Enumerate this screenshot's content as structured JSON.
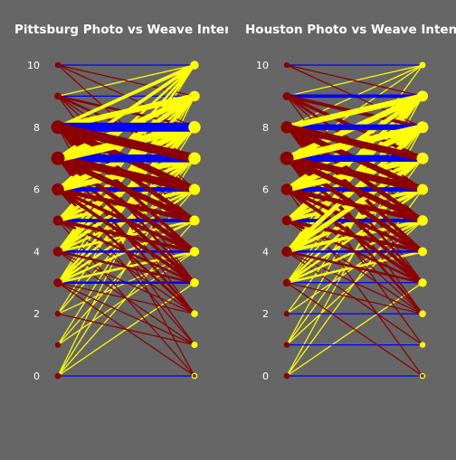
{
  "colors": {
    "background": "#666666",
    "equal": "#0000ff",
    "photo_higher": "#8b0000",
    "weave_higher": "#ffff00",
    "text": "#ffffff"
  },
  "chart_data": [
    {
      "type": "bump",
      "title": "Pittsburg Photo vs Weave Intensity",
      "ylim": [
        0,
        10
      ],
      "yticks": [
        0,
        2,
        4,
        6,
        8,
        10
      ],
      "links": [
        {
          "from": 0,
          "to": 0,
          "w": 1
        },
        {
          "from": 0,
          "to": 3,
          "w": 1
        },
        {
          "from": 0,
          "to": 5,
          "w": 1
        },
        {
          "from": 0,
          "to": 7,
          "w": 1
        },
        {
          "from": 0,
          "to": 9,
          "w": 1
        },
        {
          "from": 1,
          "to": 4,
          "w": 1
        },
        {
          "from": 1,
          "to": 6,
          "w": 1
        },
        {
          "from": 1,
          "to": 8,
          "w": 1
        },
        {
          "from": 2,
          "to": 1,
          "w": 1
        },
        {
          "from": 2,
          "to": 4,
          "w": 1
        },
        {
          "from": 2,
          "to": 7,
          "w": 1
        },
        {
          "from": 2,
          "to": 9,
          "w": 1
        },
        {
          "from": 3,
          "to": 3,
          "w": 2
        },
        {
          "from": 3,
          "to": 0,
          "w": 1
        },
        {
          "from": 3,
          "to": 1,
          "w": 1
        },
        {
          "from": 3,
          "to": 2,
          "w": 1
        },
        {
          "from": 3,
          "to": 4,
          "w": 2
        },
        {
          "from": 3,
          "to": 5,
          "w": 2
        },
        {
          "from": 3,
          "to": 6,
          "w": 2
        },
        {
          "from": 3,
          "to": 7,
          "w": 2
        },
        {
          "from": 3,
          "to": 8,
          "w": 2
        },
        {
          "from": 3,
          "to": 9,
          "w": 1
        },
        {
          "from": 3,
          "to": 10,
          "w": 1
        },
        {
          "from": 4,
          "to": 4,
          "w": 2
        },
        {
          "from": 4,
          "to": 1,
          "w": 1
        },
        {
          "from": 4,
          "to": 2,
          "w": 1
        },
        {
          "from": 4,
          "to": 3,
          "w": 2
        },
        {
          "from": 4,
          "to": 5,
          "w": 2
        },
        {
          "from": 4,
          "to": 6,
          "w": 2
        },
        {
          "from": 4,
          "to": 7,
          "w": 3
        },
        {
          "from": 4,
          "to": 8,
          "w": 3
        },
        {
          "from": 4,
          "to": 9,
          "w": 3
        },
        {
          "from": 4,
          "to": 10,
          "w": 2
        },
        {
          "from": 5,
          "to": 5,
          "w": 3
        },
        {
          "from": 5,
          "to": 0,
          "w": 1
        },
        {
          "from": 5,
          "to": 2,
          "w": 1
        },
        {
          "from": 5,
          "to": 3,
          "w": 2
        },
        {
          "from": 5,
          "to": 4,
          "w": 3
        },
        {
          "from": 5,
          "to": 6,
          "w": 3
        },
        {
          "from": 5,
          "to": 7,
          "w": 3
        },
        {
          "from": 5,
          "to": 8,
          "w": 3
        },
        {
          "from": 5,
          "to": 9,
          "w": 2
        },
        {
          "from": 5,
          "to": 10,
          "w": 2
        },
        {
          "from": 6,
          "to": 6,
          "w": 4
        },
        {
          "from": 6,
          "to": 1,
          "w": 1
        },
        {
          "from": 6,
          "to": 2,
          "w": 2
        },
        {
          "from": 6,
          "to": 3,
          "w": 3
        },
        {
          "from": 6,
          "to": 4,
          "w": 3
        },
        {
          "from": 6,
          "to": 5,
          "w": 4
        },
        {
          "from": 6,
          "to": 7,
          "w": 5
        },
        {
          "from": 6,
          "to": 8,
          "w": 5
        },
        {
          "from": 6,
          "to": 9,
          "w": 4
        },
        {
          "from": 6,
          "to": 10,
          "w": 2
        },
        {
          "from": 7,
          "to": 7,
          "w": 7
        },
        {
          "from": 7,
          "to": 1,
          "w": 1
        },
        {
          "from": 7,
          "to": 2,
          "w": 2
        },
        {
          "from": 7,
          "to": 3,
          "w": 3
        },
        {
          "from": 7,
          "to": 4,
          "w": 4
        },
        {
          "from": 7,
          "to": 5,
          "w": 5
        },
        {
          "from": 7,
          "to": 6,
          "w": 7
        },
        {
          "from": 7,
          "to": 8,
          "w": 7
        },
        {
          "from": 7,
          "to": 9,
          "w": 5
        },
        {
          "from": 7,
          "to": 10,
          "w": 3
        },
        {
          "from": 8,
          "to": 8,
          "w": 8
        },
        {
          "from": 8,
          "to": 0,
          "w": 1
        },
        {
          "from": 8,
          "to": 2,
          "w": 1
        },
        {
          "from": 8,
          "to": 3,
          "w": 2
        },
        {
          "from": 8,
          "to": 4,
          "w": 3
        },
        {
          "from": 8,
          "to": 5,
          "w": 4
        },
        {
          "from": 8,
          "to": 6,
          "w": 6
        },
        {
          "from": 8,
          "to": 7,
          "w": 8
        },
        {
          "from": 8,
          "to": 9,
          "w": 5
        },
        {
          "from": 8,
          "to": 10,
          "w": 3
        },
        {
          "from": 9,
          "to": 9,
          "w": 1
        },
        {
          "from": 9,
          "to": 3,
          "w": 1
        },
        {
          "from": 9,
          "to": 5,
          "w": 1
        },
        {
          "from": 9,
          "to": 6,
          "w": 1
        },
        {
          "from": 9,
          "to": 7,
          "w": 2
        },
        {
          "from": 9,
          "to": 8,
          "w": 2
        },
        {
          "from": 9,
          "to": 10,
          "w": 1
        },
        {
          "from": 10,
          "to": 10,
          "w": 1
        },
        {
          "from": 10,
          "to": 6,
          "w": 1
        },
        {
          "from": 10,
          "to": 8,
          "w": 1
        },
        {
          "from": 10,
          "to": 9,
          "w": 1
        }
      ]
    },
    {
      "type": "bump",
      "title": "Houston Photo vs Weave Intensity",
      "ylim": [
        0,
        10
      ],
      "yticks": [
        0,
        2,
        4,
        6,
        8,
        10
      ],
      "links": [
        {
          "from": 0,
          "to": 0,
          "w": 1
        },
        {
          "from": 0,
          "to": 3,
          "w": 1
        },
        {
          "from": 0,
          "to": 6,
          "w": 1
        },
        {
          "from": 0,
          "to": 8,
          "w": 1
        },
        {
          "from": 1,
          "to": 1,
          "w": 1
        },
        {
          "from": 1,
          "to": 5,
          "w": 1
        },
        {
          "from": 1,
          "to": 7,
          "w": 1
        },
        {
          "from": 1,
          "to": 9,
          "w": 1
        },
        {
          "from": 2,
          "to": 2,
          "w": 1
        },
        {
          "from": 2,
          "to": 5,
          "w": 1
        },
        {
          "from": 2,
          "to": 8,
          "w": 1
        },
        {
          "from": 3,
          "to": 3,
          "w": 1
        },
        {
          "from": 3,
          "to": 0,
          "w": 1
        },
        {
          "from": 3,
          "to": 2,
          "w": 1
        },
        {
          "from": 3,
          "to": 4,
          "w": 2
        },
        {
          "from": 3,
          "to": 5,
          "w": 2
        },
        {
          "from": 3,
          "to": 6,
          "w": 2
        },
        {
          "from": 3,
          "to": 7,
          "w": 2
        },
        {
          "from": 3,
          "to": 8,
          "w": 1
        },
        {
          "from": 3,
          "to": 9,
          "w": 1
        },
        {
          "from": 4,
          "to": 4,
          "w": 2
        },
        {
          "from": 4,
          "to": 1,
          "w": 1
        },
        {
          "from": 4,
          "to": 2,
          "w": 1
        },
        {
          "from": 4,
          "to": 3,
          "w": 2
        },
        {
          "from": 4,
          "to": 5,
          "w": 3
        },
        {
          "from": 4,
          "to": 6,
          "w": 3
        },
        {
          "from": 4,
          "to": 7,
          "w": 4
        },
        {
          "from": 4,
          "to": 8,
          "w": 4
        },
        {
          "from": 4,
          "to": 9,
          "w": 3
        },
        {
          "from": 4,
          "to": 10,
          "w": 1
        },
        {
          "from": 5,
          "to": 5,
          "w": 3
        },
        {
          "from": 5,
          "to": 2,
          "w": 1
        },
        {
          "from": 5,
          "to": 3,
          "w": 2
        },
        {
          "from": 5,
          "to": 4,
          "w": 3
        },
        {
          "from": 5,
          "to": 6,
          "w": 3
        },
        {
          "from": 5,
          "to": 7,
          "w": 3
        },
        {
          "from": 5,
          "to": 8,
          "w": 3
        },
        {
          "from": 5,
          "to": 9,
          "w": 3
        },
        {
          "from": 6,
          "to": 6,
          "w": 4
        },
        {
          "from": 6,
          "to": 0,
          "w": 1
        },
        {
          "from": 6,
          "to": 2,
          "w": 1
        },
        {
          "from": 6,
          "to": 3,
          "w": 3
        },
        {
          "from": 6,
          "to": 4,
          "w": 3
        },
        {
          "from": 6,
          "to": 5,
          "w": 4
        },
        {
          "from": 6,
          "to": 7,
          "w": 5
        },
        {
          "from": 6,
          "to": 8,
          "w": 5
        },
        {
          "from": 6,
          "to": 9,
          "w": 4
        },
        {
          "from": 7,
          "to": 7,
          "w": 6
        },
        {
          "from": 7,
          "to": 1,
          "w": 1
        },
        {
          "from": 7,
          "to": 2,
          "w": 2
        },
        {
          "from": 7,
          "to": 3,
          "w": 3
        },
        {
          "from": 7,
          "to": 4,
          "w": 4
        },
        {
          "from": 7,
          "to": 5,
          "w": 5
        },
        {
          "from": 7,
          "to": 6,
          "w": 6
        },
        {
          "from": 7,
          "to": 8,
          "w": 6
        },
        {
          "from": 7,
          "to": 9,
          "w": 5
        },
        {
          "from": 7,
          "to": 10,
          "w": 1
        },
        {
          "from": 8,
          "to": 8,
          "w": 5
        },
        {
          "from": 8,
          "to": 2,
          "w": 1
        },
        {
          "from": 8,
          "to": 3,
          "w": 2
        },
        {
          "from": 8,
          "to": 4,
          "w": 3
        },
        {
          "from": 8,
          "to": 5,
          "w": 4
        },
        {
          "from": 8,
          "to": 6,
          "w": 5
        },
        {
          "from": 8,
          "to": 7,
          "w": 6
        },
        {
          "from": 8,
          "to": 9,
          "w": 5
        },
        {
          "from": 8,
          "to": 10,
          "w": 1
        },
        {
          "from": 9,
          "to": 9,
          "w": 3
        },
        {
          "from": 9,
          "to": 3,
          "w": 1
        },
        {
          "from": 9,
          "to": 5,
          "w": 1
        },
        {
          "from": 9,
          "to": 6,
          "w": 2
        },
        {
          "from": 9,
          "to": 7,
          "w": 3
        },
        {
          "from": 9,
          "to": 8,
          "w": 3
        },
        {
          "from": 9,
          "to": 10,
          "w": 1
        },
        {
          "from": 10,
          "to": 10,
          "w": 1
        },
        {
          "from": 10,
          "to": 8,
          "w": 1
        },
        {
          "from": 10,
          "to": 9,
          "w": 1
        }
      ]
    }
  ]
}
